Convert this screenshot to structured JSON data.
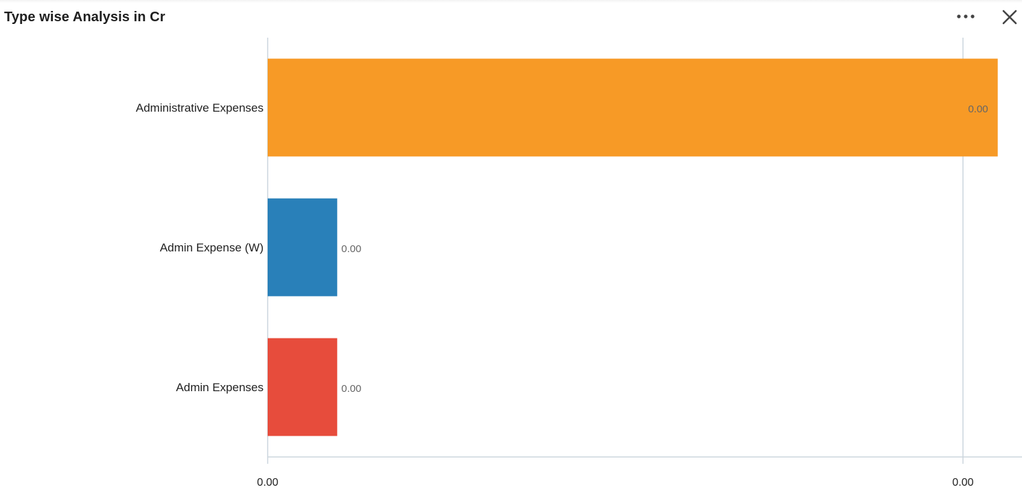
{
  "panel": {
    "title": "Type wise Analysis in Cr",
    "more_icon": "more-horizontal-icon",
    "close_icon": "close-icon"
  },
  "colors": {
    "axis": "#ccd6dd",
    "bar_orange": "#f79a26",
    "bar_blue": "#2980b9",
    "bar_red": "#e74c3c"
  },
  "chart_data": {
    "type": "bar",
    "orientation": "horizontal",
    "title": "Type wise Analysis in Cr",
    "categories": [
      "Administrative Expenses",
      "Admin Expense (W)",
      "Admin Expenses"
    ],
    "values": [
      0.00105,
      0.0001,
      0.0001
    ],
    "value_labels": [
      "0.00",
      "0.00",
      "0.00"
    ],
    "bar_colors": [
      "#f79a26",
      "#2980b9",
      "#e74c3c"
    ],
    "xlim": [
      0,
      0.001
    ],
    "x_ticks": [
      0,
      0.001
    ],
    "x_tick_labels": [
      "0.00",
      "0.00"
    ],
    "grid": true,
    "legend": "none"
  }
}
